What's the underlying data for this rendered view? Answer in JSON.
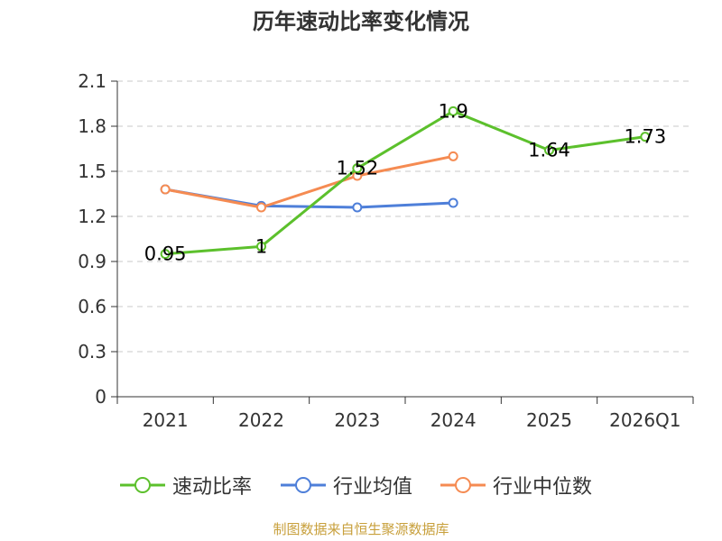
{
  "chart_data": {
    "type": "line",
    "title": "历年速动比率变化情况",
    "categories": [
      "2021",
      "2022",
      "2023",
      "2024",
      "2025",
      "2026Q1"
    ],
    "ylim": [
      0,
      2.1
    ],
    "yticks": [
      "0",
      "0.3",
      "0.6",
      "0.9",
      "1.2",
      "1.5",
      "1.8",
      "2.1"
    ],
    "grid": true,
    "legend_position": "bottom",
    "series": [
      {
        "name": "速动比率",
        "color": "#5cc02c",
        "values": [
          0.95,
          1.0,
          1.52,
          1.9,
          1.64,
          1.73
        ],
        "labels": [
          "0.95",
          "1",
          "1.52",
          "1.9",
          "1.64",
          "1.73"
        ]
      },
      {
        "name": "行业均值",
        "color": "#4e7fd9",
        "values": [
          1.38,
          1.27,
          1.26,
          1.29,
          null,
          null
        ]
      },
      {
        "name": "行业中位数",
        "color": "#f58b52",
        "values": [
          1.38,
          1.26,
          1.47,
          1.6,
          null,
          null
        ]
      }
    ]
  },
  "legend": {
    "items": [
      "速动比率",
      "行业均值",
      "行业中位数"
    ]
  },
  "source_note": "制图数据来自恒生聚源数据库"
}
